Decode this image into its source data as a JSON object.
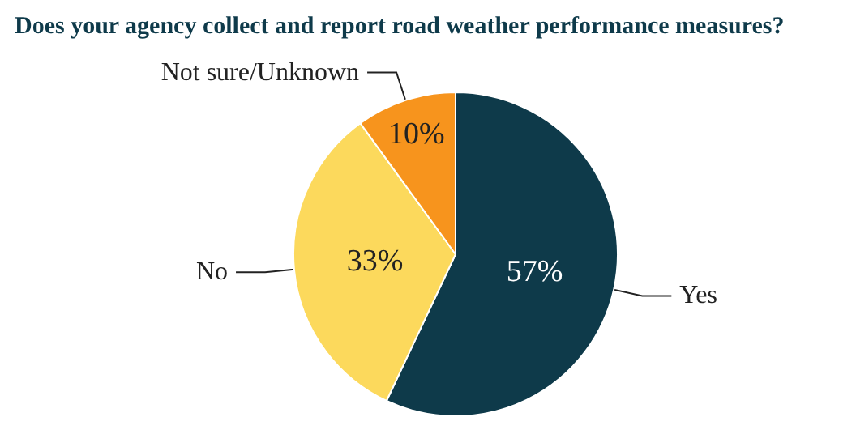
{
  "chart_data": {
    "type": "pie",
    "title": "Does your agency collect and report road weather performance measures?",
    "categories": [
      "Yes",
      "No",
      "Not sure/Unknown"
    ],
    "values": [
      57,
      33,
      10
    ],
    "value_labels": [
      "57%",
      "33%",
      "10%"
    ],
    "colors": [
      "#0e3a4a",
      "#fcd95c",
      "#f7941d"
    ],
    "legend": false
  }
}
